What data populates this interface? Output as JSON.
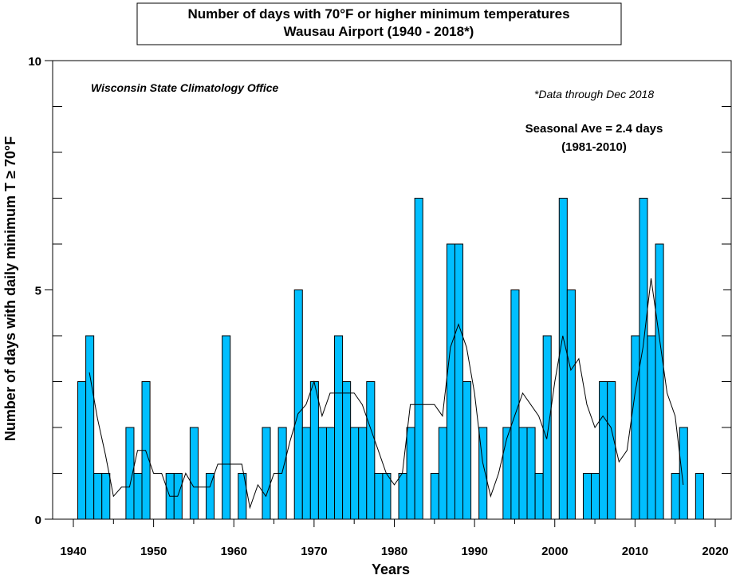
{
  "chart_data": {
    "type": "bar",
    "title_line1": "Number of days with 70°F or higher minimum temperatures",
    "title_line2": "Wausau Airport (1940 - 2018*)",
    "xlabel": "Years",
    "ylabel": "Number of days with daily minimum T ≥ 70°F",
    "xlim": [
      1939,
      2021
    ],
    "ylim": [
      0,
      10
    ],
    "x_ticks": [
      1940,
      1950,
      1960,
      1970,
      1980,
      1990,
      2000,
      2010,
      2020
    ],
    "y_tick_labels": [
      0,
      5,
      10
    ],
    "y_minor_ticks": [
      1,
      2,
      3,
      4,
      6,
      7,
      8,
      9
    ],
    "annotations": {
      "source": "Wisconsin State Climatology Office",
      "data_note": "*Data through Dec 2018",
      "seasonal_ave": "Seasonal Ave = 2.4 days",
      "seasonal_period": "(1981-2010)"
    },
    "bar_color": "#00bfff",
    "years": [
      1941,
      1942,
      1943,
      1944,
      1947,
      1948,
      1949,
      1952,
      1953,
      1955,
      1957,
      1959,
      1961,
      1964,
      1966,
      1968,
      1969,
      1970,
      1971,
      1972,
      1973,
      1974,
      1975,
      1976,
      1977,
      1978,
      1979,
      1981,
      1982,
      1983,
      1985,
      1986,
      1987,
      1988,
      1989,
      1991,
      1994,
      1995,
      1996,
      1997,
      1998,
      1999,
      2001,
      2002,
      2004,
      2005,
      2006,
      2007,
      2010,
      2011,
      2012,
      2013,
      2015,
      2016,
      2018
    ],
    "values": [
      3,
      4,
      1,
      1,
      2,
      1,
      3,
      1,
      1,
      2,
      1,
      4,
      1,
      2,
      2,
      5,
      2,
      3,
      2,
      2,
      4,
      3,
      2,
      2,
      3,
      1,
      1,
      1,
      2,
      7,
      1,
      2,
      6,
      6,
      3,
      2,
      2,
      5,
      2,
      2,
      1,
      4,
      7,
      5,
      1,
      1,
      3,
      3,
      4,
      7,
      4,
      6,
      1,
      2,
      1
    ],
    "smoothed": {
      "x": [
        1942,
        1943,
        1944,
        1945,
        1946,
        1947,
        1948,
        1949,
        1950,
        1951,
        1952,
        1953,
        1954,
        1955,
        1956,
        1957,
        1958,
        1959,
        1960,
        1961,
        1962,
        1963,
        1964,
        1965,
        1966,
        1967,
        1968,
        1969,
        1970,
        1971,
        1972,
        1973,
        1974,
        1975,
        1976,
        1977,
        1978,
        1979,
        1980,
        1981,
        1982,
        1983,
        1984,
        1985,
        1986,
        1987,
        1988,
        1989,
        1990,
        1991,
        1992,
        1993,
        1994,
        1995,
        1996,
        1997,
        1998,
        1999,
        2000,
        2001,
        2002,
        2003,
        2004,
        2005,
        2006,
        2007,
        2008,
        2009,
        2010,
        2011,
        2012,
        2013,
        2014,
        2015,
        2016
      ],
      "y": [
        3.2,
        2.2,
        1.4,
        0.5,
        0.7,
        0.7,
        1.5,
        1.5,
        1.0,
        1.0,
        0.5,
        0.5,
        1.0,
        0.7,
        0.7,
        0.7,
        1.2,
        1.2,
        1.2,
        1.2,
        0.25,
        0.75,
        0.5,
        1.0,
        1.0,
        1.7,
        2.3,
        2.5,
        3.0,
        2.25,
        2.75,
        2.75,
        2.75,
        2.75,
        2.5,
        2.0,
        1.5,
        1.0,
        0.75,
        1.0,
        2.5,
        2.5,
        2.5,
        2.5,
        2.25,
        3.75,
        4.25,
        3.75,
        2.75,
        1.25,
        0.5,
        1.0,
        1.75,
        2.25,
        2.75,
        2.5,
        2.25,
        1.75,
        3.0,
        4.0,
        3.25,
        3.5,
        2.5,
        2.0,
        2.25,
        2.0,
        1.25,
        1.5,
        2.75,
        3.75,
        5.25,
        4.0,
        2.75,
        2.25,
        0.75
      ]
    }
  }
}
